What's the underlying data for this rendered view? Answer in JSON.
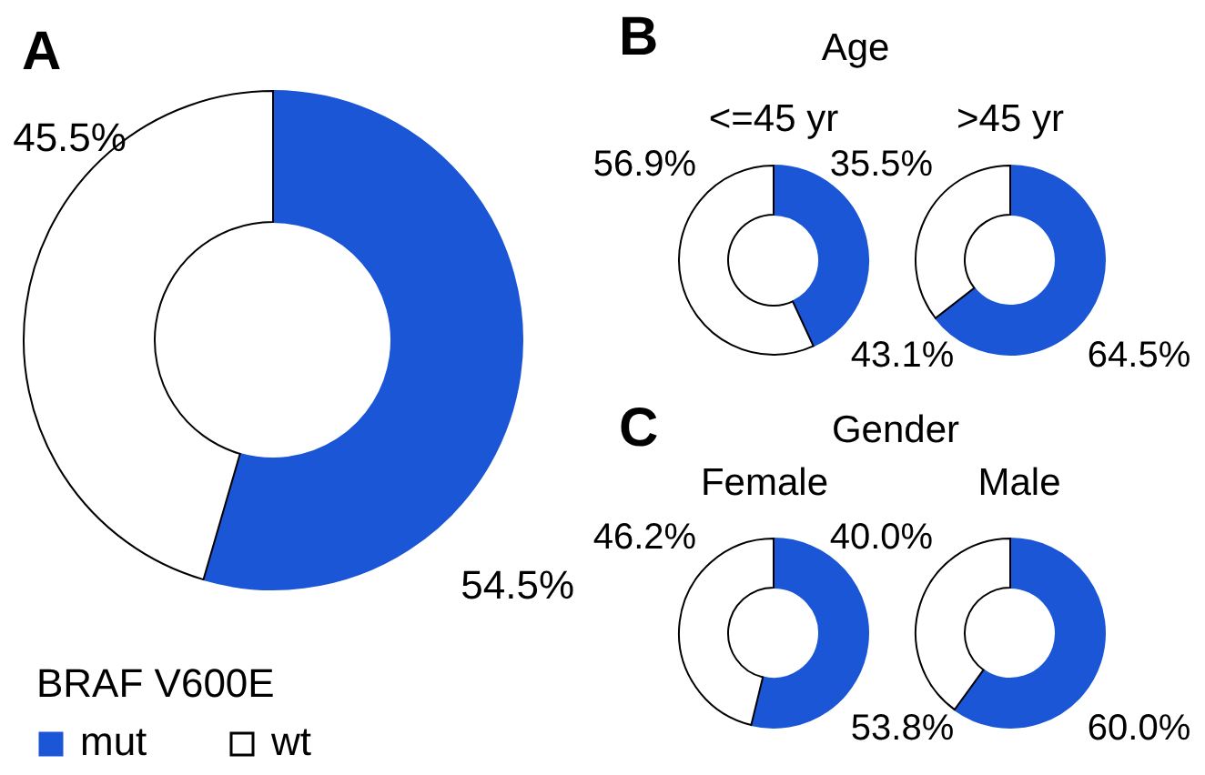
{
  "chart_data": [
    {
      "type": "donut",
      "title": "A",
      "legend_title": "BRAF V600E",
      "legend": "bottom left",
      "categories": [
        "mut",
        "wt"
      ],
      "values": [
        54.5,
        45.5
      ],
      "value_labels": [
        "54.5%",
        "45.5%"
      ],
      "colors": [
        "#1a56d6",
        "#ffffff"
      ]
    },
    {
      "type": "donut",
      "title": "<=45 yr",
      "annotations": [
        "B",
        "Age"
      ],
      "categories": [
        null,
        null
      ],
      "values": [
        43.1,
        56.9
      ],
      "value_labels": [
        "43.1%",
        "56.9%"
      ],
      "colors": [
        "#1a56d6",
        "#ffffff"
      ]
    },
    {
      "type": "donut",
      "title": ">45 yr",
      "categories": [
        null,
        null
      ],
      "values": [
        64.5,
        35.5
      ],
      "value_labels": [
        "64.5%",
        "35.5%"
      ],
      "colors": [
        "#1a56d6",
        "#ffffff"
      ]
    },
    {
      "type": "donut",
      "title": "Female",
      "annotations": [
        "C",
        "Gender"
      ],
      "categories": [
        null,
        null
      ],
      "values": [
        53.8,
        46.2
      ],
      "value_labels": [
        "53.8%",
        "46.2%"
      ],
      "colors": [
        "#1a56d6",
        "#ffffff"
      ]
    },
    {
      "type": "donut",
      "title": "Male",
      "categories": [
        null,
        null
      ],
      "values": [
        60.0,
        40.0
      ],
      "value_labels": [
        "60.0%",
        "40.0%"
      ],
      "colors": [
        "#1a56d6",
        "#ffffff"
      ]
    }
  ]
}
